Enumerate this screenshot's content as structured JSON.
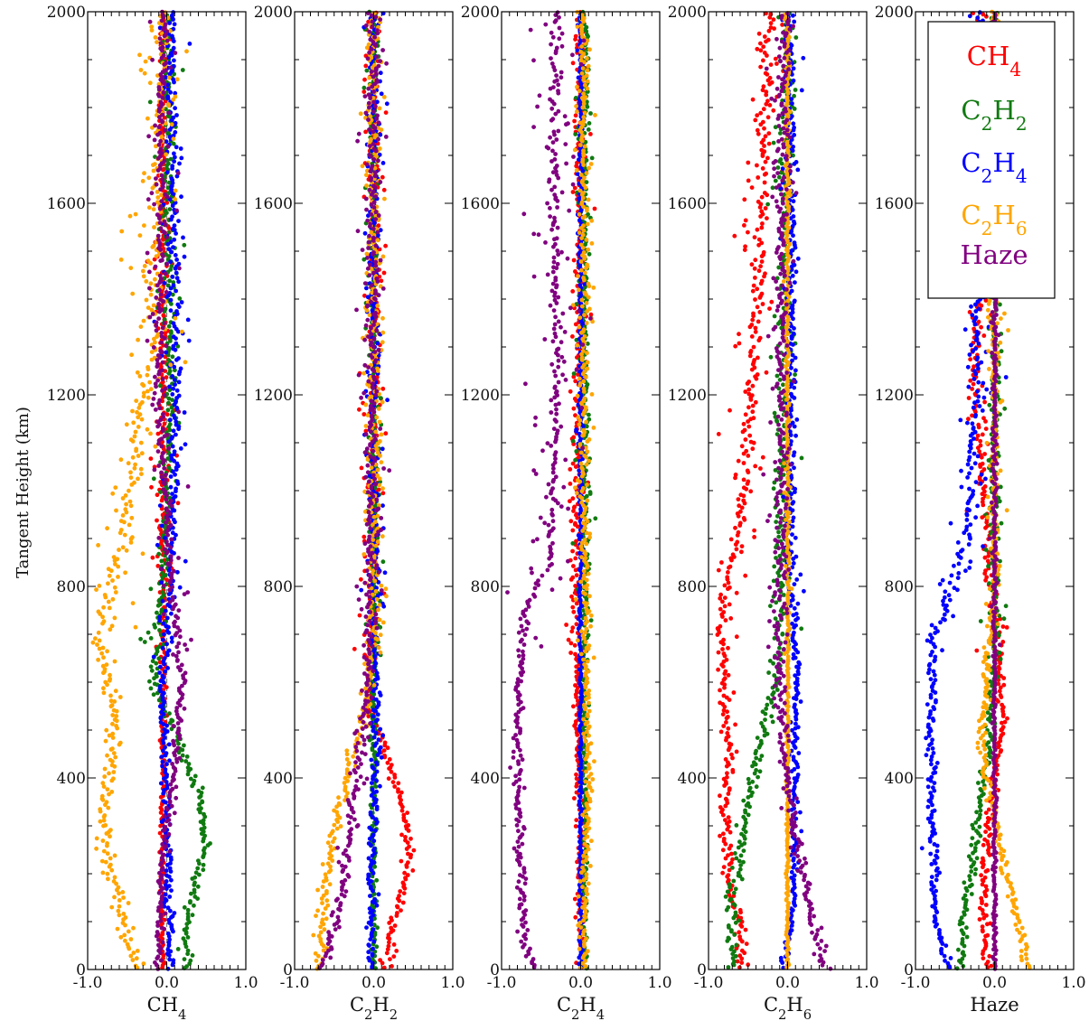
{
  "figure": {
    "ylabel": "Tangent Height (km)"
  },
  "colors": {
    "CH4": "#ff0000",
    "C2H2": "#107a10",
    "C2H4": "#0000ff",
    "C2H6": "#ffa500",
    "Haze": "#800080",
    "grid_dash": "#808080"
  },
  "legend": {
    "placement": "top-right of last panel",
    "entries": [
      {
        "key": "CH4",
        "base": "CH",
        "sub1": "",
        "mid": "",
        "sub2": "4",
        "color": "#ff0000"
      },
      {
        "key": "C2H2",
        "base": "C",
        "sub1": "2",
        "mid": "H",
        "sub2": "2",
        "color": "#107a10"
      },
      {
        "key": "C2H4",
        "base": "C",
        "sub1": "2",
        "mid": "H",
        "sub2": "4",
        "color": "#0000ff"
      },
      {
        "key": "C2H6",
        "base": "C",
        "sub1": "2",
        "mid": "H",
        "sub2": "6",
        "color": "#ffa500"
      },
      {
        "key": "Haze",
        "base": "Haze",
        "sub1": "",
        "mid": "",
        "sub2": "",
        "color": "#800080"
      }
    ]
  },
  "chart_data": [
    {
      "type": "scatter",
      "xlabel": {
        "base": "CH",
        "sub1": "",
        "mid": "",
        "sub2": "4"
      },
      "xlim": [
        -1.0,
        1.0
      ],
      "ylim": [
        0,
        2000
      ],
      "xticks": [
        "-1.0",
        "0.0",
        "1.0"
      ],
      "yticks": [
        "0",
        "400",
        "800",
        "1200",
        "1600",
        "2000"
      ],
      "series": [
        {
          "name": "CH4",
          "color": "#ff0000",
          "profile": {
            "y": [
              0,
              500,
              800,
              2000
            ],
            "x": [
              -0.05,
              -0.05,
              -0.05,
              -0.05
            ]
          },
          "noise": 0.02,
          "scatter": 0.08
        },
        {
          "name": "C2H2",
          "color": "#107a10",
          "profile": {
            "y": [
              0,
              50,
              150,
              250,
              350,
              430,
              520,
              600,
              800,
              1200,
              2000
            ],
            "x": [
              0.25,
              0.22,
              0.32,
              0.48,
              0.45,
              0.25,
              0.05,
              -0.18,
              -0.05,
              0.05,
              0.0
            ]
          },
          "noise": 0.03,
          "scatter": 0.1
        },
        {
          "name": "C2H4",
          "color": "#0000ff",
          "profile": {
            "y": [
              0,
              200,
              400,
              600,
              800,
              1200,
              2000
            ],
            "x": [
              0.05,
              0.02,
              -0.03,
              -0.05,
              0.05,
              0.12,
              0.05
            ]
          },
          "noise": 0.03,
          "scatter": 0.08
        },
        {
          "name": "C2H6",
          "color": "#ffa500",
          "profile": {
            "y": [
              0,
              50,
              150,
              280,
              400,
              500,
              600,
              700,
              800,
              900,
              1000,
              1100,
              1300,
              2000
            ],
            "x": [
              -0.35,
              -0.45,
              -0.6,
              -0.8,
              -0.72,
              -0.65,
              -0.7,
              -0.9,
              -0.7,
              -0.55,
              -0.45,
              -0.4,
              -0.2,
              -0.05
            ]
          },
          "noise": 0.05,
          "scatter": 0.2
        },
        {
          "name": "Haze",
          "color": "#800080",
          "profile": {
            "y": [
              0,
              200,
              400,
              600,
              800,
              1200,
              2000
            ],
            "x": [
              -0.1,
              -0.08,
              0.1,
              0.2,
              0.05,
              -0.1,
              -0.05
            ]
          },
          "noise": 0.03,
          "scatter": 0.1
        }
      ]
    },
    {
      "type": "scatter",
      "xlabel": {
        "base": "C",
        "sub1": "2",
        "mid": "H",
        "sub2": "2"
      },
      "xlim": [
        -1.0,
        1.0
      ],
      "ylim": [
        0,
        2000
      ],
      "xticks": [
        "-1.0",
        "0.0",
        "1.0"
      ],
      "yticks": [
        "0",
        "400",
        "800",
        "1200",
        "1600",
        "2000"
      ],
      "series": [
        {
          "name": "CH4",
          "color": "#ff0000",
          "profile": {
            "y": [
              0,
              80,
              150,
              250,
              350,
              450,
              550,
              800,
              2000
            ],
            "x": [
              0.15,
              0.2,
              0.35,
              0.45,
              0.35,
              0.15,
              -0.05,
              0.0,
              0.0
            ]
          },
          "noise": 0.03,
          "scatter": 0.08
        },
        {
          "name": "C2H2",
          "color": "#107a10",
          "profile": {
            "y": [
              0,
              2000
            ],
            "x": [
              0.0,
              0.0
            ]
          },
          "noise": 0.02,
          "scatter": 0.05
        },
        {
          "name": "C2H4",
          "color": "#0000ff",
          "profile": {
            "y": [
              0,
              300,
              500,
              700,
              2000
            ],
            "x": [
              -0.05,
              0.0,
              0.05,
              0.0,
              0.0
            ]
          },
          "noise": 0.03,
          "scatter": 0.06
        },
        {
          "name": "C2H6",
          "color": "#ffa500",
          "profile": {
            "y": [
              0,
              100,
              250,
              400,
              550,
              700,
              2000
            ],
            "x": [
              -0.7,
              -0.65,
              -0.55,
              -0.35,
              -0.1,
              0.0,
              0.0
            ]
          },
          "noise": 0.04,
          "scatter": 0.08
        },
        {
          "name": "Haze",
          "color": "#800080",
          "profile": {
            "y": [
              0,
              100,
              250,
              400,
              550,
              700,
              2000
            ],
            "x": [
              -0.65,
              -0.45,
              -0.35,
              -0.2,
              -0.1,
              -0.05,
              0.0
            ]
          },
          "noise": 0.04,
          "scatter": 0.08
        }
      ]
    },
    {
      "type": "scatter",
      "xlabel": {
        "base": "C",
        "sub1": "2",
        "mid": "H",
        "sub2": "4"
      },
      "xlim": [
        -1.0,
        1.0
      ],
      "ylim": [
        0,
        2000
      ],
      "xticks": [
        "-1.0",
        "0.0",
        "1.0"
      ],
      "yticks": [
        "0",
        "400",
        "800",
        "1200",
        "1600",
        "2000"
      ],
      "series": [
        {
          "name": "CH4",
          "color": "#ff0000",
          "profile": {
            "y": [
              0,
              400,
              600,
              800,
              2000
            ],
            "x": [
              0.0,
              -0.02,
              -0.05,
              -0.05,
              0.0
            ]
          },
          "noise": 0.03,
          "scatter": 0.06
        },
        {
          "name": "C2H2",
          "color": "#107a10",
          "profile": {
            "y": [
              0,
              2000
            ],
            "x": [
              0.05,
              0.05
            ]
          },
          "noise": 0.02,
          "scatter": 0.05
        },
        {
          "name": "C2H4",
          "color": "#0000ff",
          "profile": {
            "y": [
              0,
              2000
            ],
            "x": [
              0.0,
              0.0
            ]
          },
          "noise": 0.01,
          "scatter": 0.02
        },
        {
          "name": "C2H6",
          "color": "#ffa500",
          "profile": {
            "y": [
              0,
              400,
              800,
              2000
            ],
            "x": [
              0.02,
              0.1,
              0.05,
              0.03
            ]
          },
          "noise": 0.03,
          "scatter": 0.05
        },
        {
          "name": "Haze",
          "color": "#800080",
          "profile": {
            "y": [
              0,
              50,
              150,
              400,
              600,
              750,
              850,
              1000,
              1300,
              1600,
              2000
            ],
            "x": [
              -0.55,
              -0.7,
              -0.75,
              -0.8,
              -0.8,
              -0.7,
              -0.4,
              -0.35,
              -0.3,
              -0.35,
              -0.3
            ]
          },
          "noise": 0.03,
          "scatter": 0.2
        }
      ]
    },
    {
      "type": "scatter",
      "xlabel": {
        "base": "C",
        "sub1": "2",
        "mid": "H",
        "sub2": "6"
      },
      "xlim": [
        -1.0,
        1.0
      ],
      "ylim": [
        0,
        2000
      ],
      "xticks": [
        "-1.0",
        "0.0",
        "1.0"
      ],
      "yticks": [
        "0",
        "400",
        "800",
        "1200",
        "1600",
        "2000"
      ],
      "series": [
        {
          "name": "CH4",
          "color": "#ff0000",
          "profile": {
            "y": [
              0,
              100,
              200,
              300,
              450,
              600,
              750,
              850,
              1000,
              1200,
              1500,
              2000
            ],
            "x": [
              -0.6,
              -0.6,
              -0.75,
              -0.8,
              -0.72,
              -0.8,
              -0.85,
              -0.7,
              -0.55,
              -0.45,
              -0.35,
              -0.25
            ]
          },
          "noise": 0.04,
          "scatter": 0.15
        },
        {
          "name": "C2H2",
          "color": "#107a10",
          "profile": {
            "y": [
              0,
              150,
              300,
              400,
              500,
              600,
              800,
              2000
            ],
            "x": [
              -0.7,
              -0.7,
              -0.55,
              -0.45,
              -0.3,
              -0.15,
              -0.1,
              0.0
            ]
          },
          "noise": 0.04,
          "scatter": 0.08
        },
        {
          "name": "C2H4",
          "color": "#0000ff",
          "profile": {
            "y": [
              0,
              100,
              200,
              400,
              600,
              800,
              2000
            ],
            "x": [
              -0.05,
              0.05,
              0.1,
              0.08,
              0.12,
              0.05,
              0.03
            ]
          },
          "noise": 0.03,
          "scatter": 0.05
        },
        {
          "name": "C2H6",
          "color": "#ffa500",
          "profile": {
            "y": [
              0,
              2000
            ],
            "x": [
              0.0,
              0.0
            ]
          },
          "noise": 0.01,
          "scatter": 0.02
        },
        {
          "name": "Haze",
          "color": "#800080",
          "profile": {
            "y": [
              0,
              150,
              300,
              450,
              600,
              800,
              2000
            ],
            "x": [
              0.45,
              0.25,
              0.08,
              -0.05,
              -0.1,
              -0.1,
              -0.05
            ]
          },
          "noise": 0.04,
          "scatter": 0.08
        }
      ]
    },
    {
      "type": "scatter",
      "xlabel": {
        "base": "Haze",
        "sub1": "",
        "mid": "",
        "sub2": ""
      },
      "xlim": [
        -1.0,
        1.0
      ],
      "ylim": [
        0,
        2000
      ],
      "xticks": [
        "-1.0",
        "0.0",
        "1.0"
      ],
      "yticks": [
        "0",
        "400",
        "800",
        "1200",
        "1600",
        "2000"
      ],
      "series": [
        {
          "name": "CH4",
          "color": "#ff0000",
          "profile": {
            "y": [
              0,
              200,
              400,
              500,
              650,
              800,
              1000,
              1200,
              1400,
              2000
            ],
            "x": [
              -0.1,
              -0.15,
              0.0,
              0.1,
              0.05,
              -0.05,
              -0.15,
              -0.25,
              -0.2,
              -0.15
            ]
          },
          "noise": 0.03,
          "scatter": 0.08
        },
        {
          "name": "C2H2",
          "color": "#107a10",
          "profile": {
            "y": [
              0,
              100,
              200,
              300,
              400,
              500,
              650,
              800,
              1200,
              2000
            ],
            "x": [
              -0.45,
              -0.4,
              -0.3,
              -0.22,
              -0.15,
              -0.05,
              0.0,
              0.0,
              0.0,
              0.0
            ]
          },
          "noise": 0.03,
          "scatter": 0.06
        },
        {
          "name": "C2H4",
          "color": "#0000ff",
          "profile": {
            "y": [
              0,
              100,
              300,
              500,
              700,
              800,
              900,
              1000,
              1200,
              2000
            ],
            "x": [
              -0.6,
              -0.75,
              -0.78,
              -0.8,
              -0.75,
              -0.55,
              -0.35,
              -0.3,
              -0.25,
              -0.2
            ]
          },
          "noise": 0.03,
          "scatter": 0.12
        },
        {
          "name": "C2H6",
          "color": "#ffa500",
          "profile": {
            "y": [
              0,
              100,
              200,
              300,
              400,
              500,
              650,
              800,
              1200,
              2000
            ],
            "x": [
              0.45,
              0.3,
              0.15,
              0.02,
              -0.1,
              -0.15,
              -0.08,
              0.0,
              0.0,
              0.0
            ]
          },
          "noise": 0.03,
          "scatter": 0.06
        },
        {
          "name": "Haze",
          "color": "#800080",
          "profile": {
            "y": [
              0,
              2000
            ],
            "x": [
              0.0,
              0.0
            ]
          },
          "noise": 0.01,
          "scatter": 0.02
        }
      ]
    }
  ]
}
